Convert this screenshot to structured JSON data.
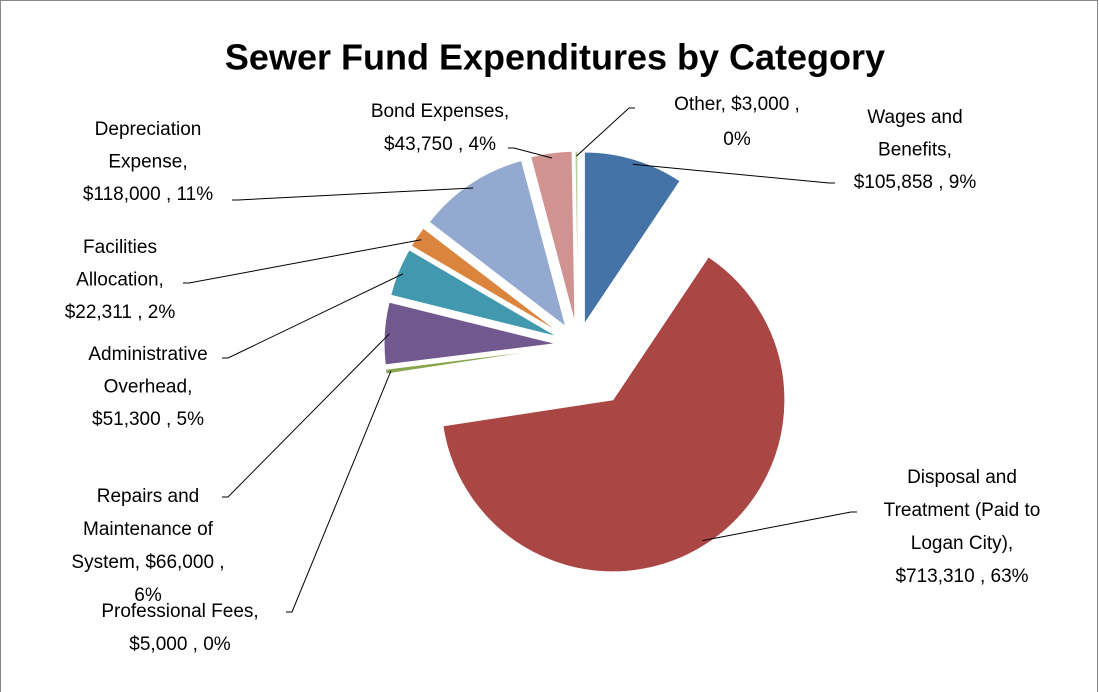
{
  "chart_data": {
    "type": "pie",
    "title": "Sewer Fund Expenditures by Category",
    "values": [
      105858,
      713310,
      5000,
      66000,
      51300,
      22311,
      118000,
      43750,
      3000
    ],
    "value_labels": [
      [
        "Wages and",
        "Benefits,",
        "$105,858 , 9%"
      ],
      [
        "Disposal and",
        "Treatment (Paid to",
        "Logan City),",
        "$713,310 , 63%"
      ],
      [
        "Professional Fees,",
        "$5,000 , 0%"
      ],
      [
        "Repairs and",
        "Maintenance of",
        "System,  $66,000 ,",
        "6%"
      ],
      [
        "Administrative",
        "Overhead,",
        "$51,300 , 5%"
      ],
      [
        "Facilities",
        "Allocation,",
        "$22,311 , 2%"
      ],
      [
        "Depreciation",
        "Expense,",
        "$118,000 , 11%"
      ],
      [
        "Bond Expenses,",
        "$43,750 , 4%"
      ],
      [
        "Other,  $3,000 ,",
        "0%"
      ]
    ],
    "colors": [
      "#4572a7",
      "#aa4643",
      "#89a54e",
      "#71588f",
      "#4198af",
      "#db843d",
      "#93a9cf",
      "#d19392",
      "#b9cd96"
    ]
  }
}
